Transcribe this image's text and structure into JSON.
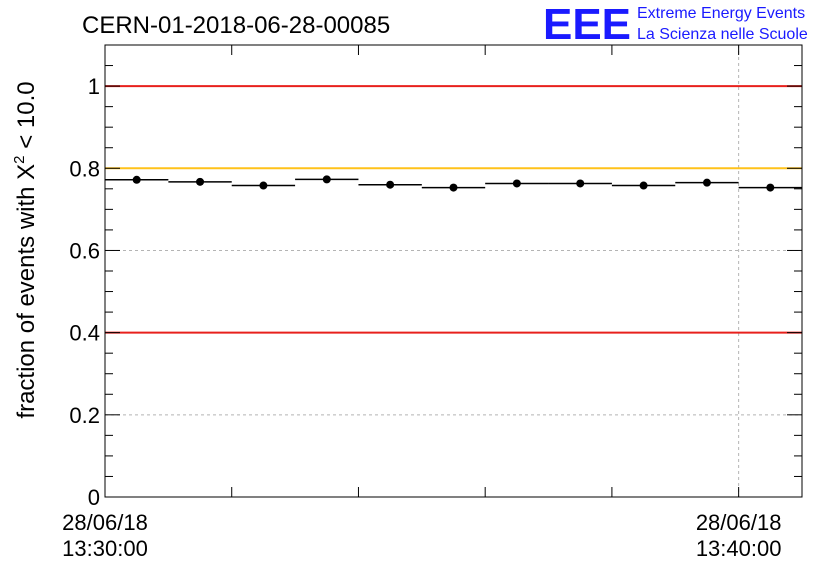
{
  "chart_data": {
    "type": "scatter",
    "title": "CERN-01-2018-06-28-00085",
    "ylabel_prefix": "fraction of events with ",
    "ylabel_symbol": "X",
    "ylabel_superscript": "2",
    "ylabel_suffix": " < 10.0",
    "ylim": [
      0,
      1.1
    ],
    "y_ticks": [
      0,
      0.2,
      0.4,
      0.6,
      0.8,
      1
    ],
    "y_tick_labels": [
      "0",
      "0.2",
      "0.4",
      "0.6",
      "0.8",
      "1"
    ],
    "x_range_minutes": [
      0,
      11
    ],
    "x_tick_labels": [
      {
        "minute": 0,
        "date": "28/06/18",
        "time": "13:30:00"
      },
      {
        "minute": 10,
        "date": "28/06/18",
        "time": "13:40:00"
      }
    ],
    "grid": true,
    "reference_lines": [
      {
        "value": 1.0,
        "color": "#e8201c"
      },
      {
        "value": 0.8,
        "color": "#ffc21a"
      },
      {
        "value": 0.4,
        "color": "#e8201c"
      }
    ],
    "series": [
      {
        "bins": [
          {
            "x0": 0.0,
            "x1": 1.0,
            "y": 0.772
          },
          {
            "x0": 1.0,
            "x1": 2.0,
            "y": 0.767
          },
          {
            "x0": 2.0,
            "x1": 3.0,
            "y": 0.758
          },
          {
            "x0": 3.0,
            "x1": 4.0,
            "y": 0.773
          },
          {
            "x0": 4.0,
            "x1": 5.0,
            "y": 0.76
          },
          {
            "x0": 5.0,
            "x1": 6.0,
            "y": 0.753
          },
          {
            "x0": 6.0,
            "x1": 7.0,
            "y": 0.763
          },
          {
            "x0": 7.0,
            "x1": 8.0,
            "y": 0.763
          },
          {
            "x0": 8.0,
            "x1": 9.0,
            "y": 0.758
          },
          {
            "x0": 9.0,
            "x1": 10.0,
            "y": 0.765
          },
          {
            "x0": 10.0,
            "x1": 11.0,
            "y": 0.753
          }
        ]
      }
    ]
  },
  "logo": {
    "letters": "EEE",
    "line1": "Extreme Energy Events",
    "line2": "La Scienza nelle Scuole",
    "color": "#1a1aff"
  }
}
